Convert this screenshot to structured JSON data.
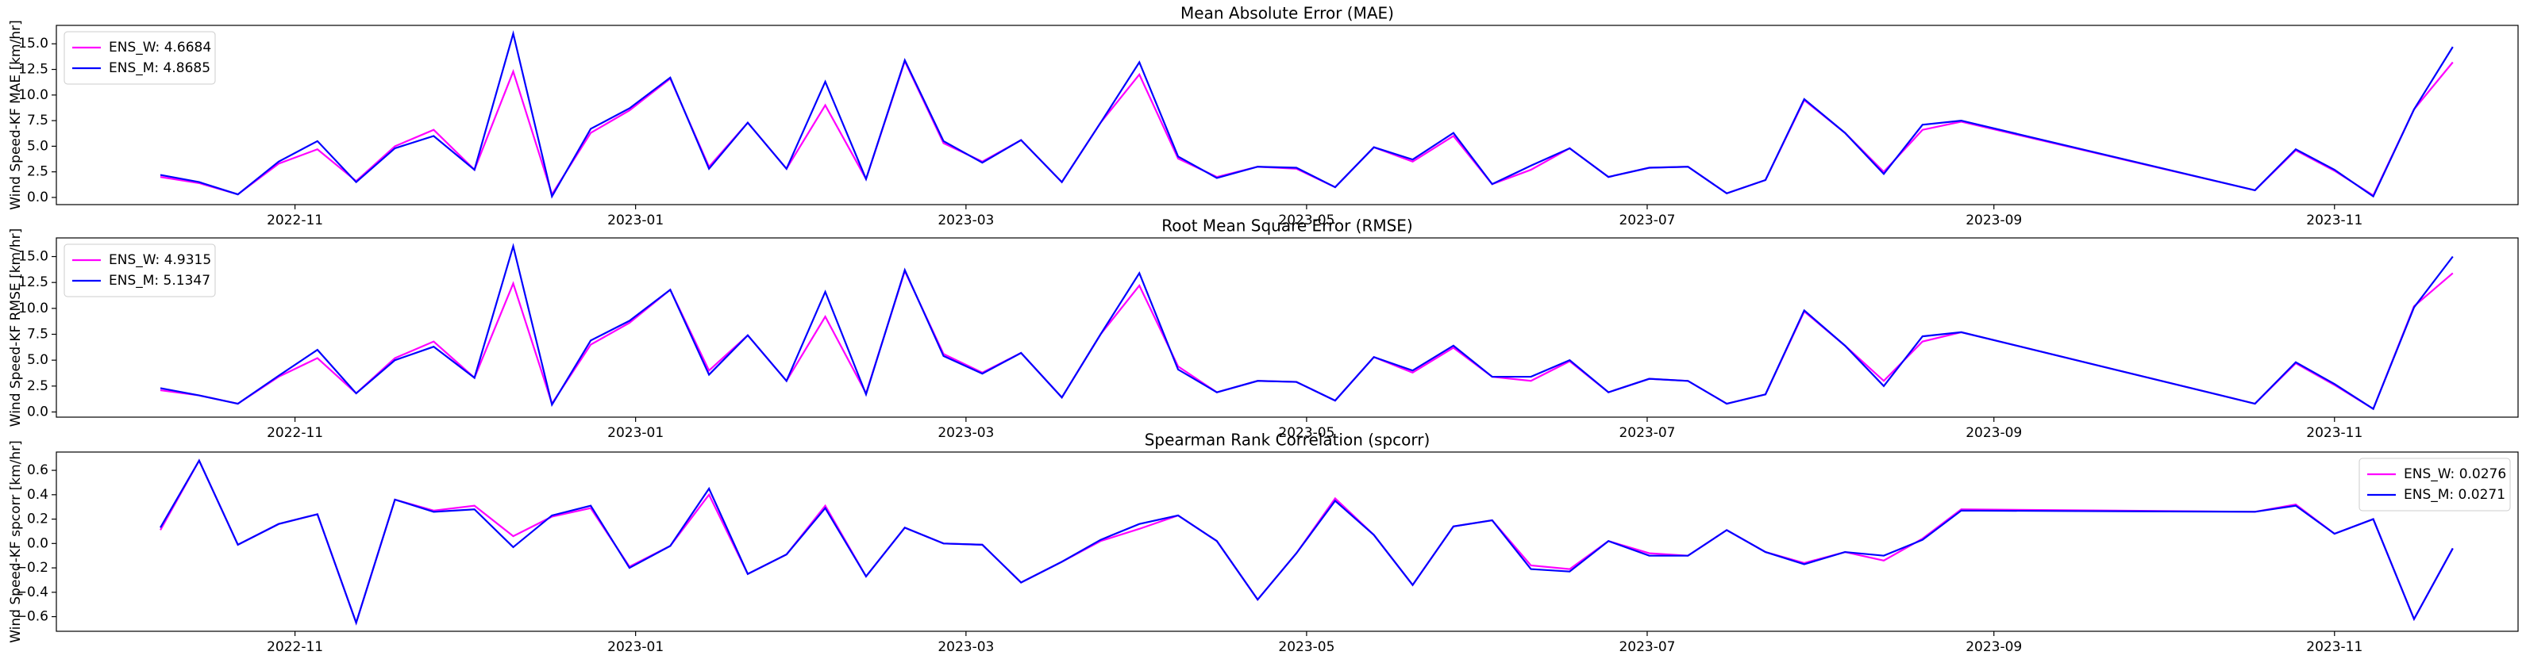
{
  "chart_data": [
    {
      "type": "line",
      "title": "Mean Absolute Error (MAE)",
      "ylabel": "Wind Speed-KF MAE [km/hr]",
      "legend": "upper left",
      "x": [
        2022.767,
        2022.786,
        2022.805,
        2022.825,
        2022.844,
        2022.863,
        2022.882,
        2022.901,
        2022.921,
        2022.94,
        2022.959,
        2022.978,
        2022.997,
        2023.017,
        2023.036,
        2023.055,
        2023.074,
        2023.093,
        2023.113,
        2023.132,
        2023.151,
        2023.17,
        2023.189,
        2023.209,
        2023.228,
        2023.247,
        2023.266,
        2023.285,
        2023.305,
        2023.324,
        2023.343,
        2023.362,
        2023.381,
        2023.401,
        2023.42,
        2023.439,
        2023.458,
        2023.477,
        2023.497,
        2023.516,
        2023.535,
        2023.554,
        2023.573,
        2023.593,
        2023.612,
        2023.631,
        2023.65,
        2023.794,
        2023.814,
        2023.833,
        2023.852,
        2023.872,
        2023.891
      ],
      "xlim": [
        2022.716,
        2023.923
      ],
      "xticks": [
        {
          "value": 2022.833,
          "label": "2022-11"
        },
        {
          "value": 2023.0,
          "label": "2023-01"
        },
        {
          "value": 2023.162,
          "label": "2023-03"
        },
        {
          "value": 2023.329,
          "label": "2023-05"
        },
        {
          "value": 2023.496,
          "label": "2023-07"
        },
        {
          "value": 2023.666,
          "label": "2023-09"
        },
        {
          "value": 2023.833,
          "label": "2023-11"
        }
      ],
      "ylim": [
        -0.7,
        16.8
      ],
      "yticks": [
        {
          "value": 0,
          "label": "0.0"
        },
        2.5,
        {
          "value": 5,
          "label": "5.0"
        },
        7.5,
        {
          "value": 10,
          "label": "10.0"
        },
        12.5,
        {
          "value": 15,
          "label": "15.0"
        }
      ],
      "series": [
        {
          "name": "ENS_W: 4.6684",
          "color": "#ff00ff",
          "values": [
            2.0,
            1.4,
            0.3,
            3.3,
            4.7,
            1.6,
            5.0,
            6.6,
            2.7,
            12.3,
            0.3,
            6.3,
            8.5,
            11.6,
            3.0,
            7.3,
            2.8,
            9.0,
            1.8,
            13.3,
            5.3,
            3.5,
            5.6,
            1.5,
            7.3,
            12.0,
            3.8,
            2.0,
            3.0,
            2.8,
            1.0,
            4.9,
            3.5,
            6.0,
            1.3,
            2.7,
            4.8,
            2.0,
            2.9,
            3.0,
            0.4,
            1.7,
            9.5,
            6.3,
            2.5,
            6.6,
            7.4,
            0.7,
            4.6,
            2.6,
            0.2,
            8.6,
            13.2
          ]
        },
        {
          "name": "ENS_M: 4.8685",
          "color": "#0000ff",
          "values": [
            2.2,
            1.5,
            0.3,
            3.5,
            5.5,
            1.5,
            4.8,
            6.0,
            2.7,
            16.0,
            0.1,
            6.7,
            8.7,
            11.7,
            2.8,
            7.3,
            2.8,
            11.3,
            1.8,
            13.4,
            5.5,
            3.4,
            5.6,
            1.5,
            7.3,
            13.2,
            4.0,
            1.9,
            3.0,
            2.9,
            1.0,
            4.9,
            3.7,
            6.3,
            1.3,
            3.1,
            4.8,
            2.0,
            2.9,
            3.0,
            0.4,
            1.7,
            9.6,
            6.3,
            2.3,
            7.1,
            7.5,
            0.7,
            4.7,
            2.7,
            0.1,
            8.6,
            14.7
          ]
        }
      ]
    },
    {
      "type": "line",
      "title": "Root Mean Square Error (RMSE)",
      "ylabel": "Wind Speed-KF RMSE [km/hr]",
      "legend": "upper left",
      "x": [
        2022.767,
        2022.786,
        2022.805,
        2022.825,
        2022.844,
        2022.863,
        2022.882,
        2022.901,
        2022.921,
        2022.94,
        2022.959,
        2022.978,
        2022.997,
        2023.017,
        2023.036,
        2023.055,
        2023.074,
        2023.093,
        2023.113,
        2023.132,
        2023.151,
        2023.17,
        2023.189,
        2023.209,
        2023.228,
        2023.247,
        2023.266,
        2023.285,
        2023.305,
        2023.324,
        2023.343,
        2023.362,
        2023.381,
        2023.401,
        2023.42,
        2023.439,
        2023.458,
        2023.477,
        2023.497,
        2023.516,
        2023.535,
        2023.554,
        2023.573,
        2023.593,
        2023.612,
        2023.631,
        2023.65,
        2023.794,
        2023.814,
        2023.833,
        2023.852,
        2023.872,
        2023.891
      ],
      "xlim": [
        2022.716,
        2023.923
      ],
      "xticks": [
        {
          "value": 2022.833,
          "label": "2022-11"
        },
        {
          "value": 2023.0,
          "label": "2023-01"
        },
        {
          "value": 2023.162,
          "label": "2023-03"
        },
        {
          "value": 2023.329,
          "label": "2023-05"
        },
        {
          "value": 2023.496,
          "label": "2023-07"
        },
        {
          "value": 2023.666,
          "label": "2023-09"
        },
        {
          "value": 2023.833,
          "label": "2023-11"
        }
      ],
      "ylim": [
        -0.5,
        16.8
      ],
      "yticks": [
        {
          "value": 0,
          "label": "0.0"
        },
        2.5,
        {
          "value": 5,
          "label": "5.0"
        },
        7.5,
        {
          "value": 10,
          "label": "10.0"
        },
        12.5,
        {
          "value": 15,
          "label": "15.0"
        }
      ],
      "series": [
        {
          "name": "ENS_W: 4.9315",
          "color": "#ff00ff",
          "values": [
            2.1,
            1.6,
            0.8,
            3.4,
            5.2,
            1.8,
            5.2,
            6.8,
            3.3,
            12.4,
            0.8,
            6.5,
            8.6,
            11.8,
            4.0,
            7.4,
            3.0,
            9.2,
            1.8,
            13.6,
            5.6,
            3.8,
            5.7,
            1.4,
            7.5,
            12.2,
            4.4,
            1.9,
            3.0,
            2.9,
            1.1,
            5.3,
            3.8,
            6.2,
            3.4,
            3.0,
            4.9,
            1.9,
            3.2,
            3.0,
            0.8,
            1.7,
            9.7,
            6.4,
            3.0,
            6.8,
            7.7,
            0.8,
            4.7,
            2.6,
            0.3,
            10.2,
            13.4
          ]
        },
        {
          "name": "ENS_M: 5.1347",
          "color": "#0000ff",
          "values": [
            2.3,
            1.6,
            0.8,
            3.5,
            6.0,
            1.8,
            5.0,
            6.3,
            3.3,
            16.0,
            0.7,
            6.9,
            8.8,
            11.8,
            3.6,
            7.4,
            3.0,
            11.6,
            1.7,
            13.7,
            5.4,
            3.7,
            5.7,
            1.4,
            7.5,
            13.4,
            4.1,
            1.9,
            3.0,
            2.9,
            1.1,
            5.3,
            4.0,
            6.4,
            3.4,
            3.4,
            5.0,
            1.9,
            3.2,
            3.0,
            0.8,
            1.7,
            9.8,
            6.4,
            2.5,
            7.3,
            7.7,
            0.8,
            4.8,
            2.7,
            0.3,
            10.1,
            15.0
          ]
        }
      ]
    },
    {
      "type": "line",
      "title": "Spearman Rank Correlation (spcorr)",
      "ylabel": "Wind Speed-KF spcorr [km/hr]",
      "legend": "upper right",
      "x": [
        2022.767,
        2022.786,
        2022.805,
        2022.825,
        2022.844,
        2022.863,
        2022.882,
        2022.901,
        2022.921,
        2022.94,
        2022.959,
        2022.978,
        2022.997,
        2023.017,
        2023.036,
        2023.055,
        2023.074,
        2023.093,
        2023.113,
        2023.132,
        2023.151,
        2023.17,
        2023.189,
        2023.209,
        2023.228,
        2023.247,
        2023.266,
        2023.285,
        2023.305,
        2023.324,
        2023.343,
        2023.362,
        2023.381,
        2023.401,
        2023.42,
        2023.439,
        2023.458,
        2023.477,
        2023.497,
        2023.516,
        2023.535,
        2023.554,
        2023.573,
        2023.593,
        2023.612,
        2023.631,
        2023.65,
        2023.794,
        2023.814,
        2023.833,
        2023.852,
        2023.872,
        2023.891
      ],
      "xlim": [
        2022.716,
        2023.923
      ],
      "xticks": [
        {
          "value": 2022.833,
          "label": "2022-11"
        },
        {
          "value": 2023.0,
          "label": "2023-01"
        },
        {
          "value": 2023.162,
          "label": "2023-03"
        },
        {
          "value": 2023.329,
          "label": "2023-05"
        },
        {
          "value": 2023.496,
          "label": "2023-07"
        },
        {
          "value": 2023.666,
          "label": "2023-09"
        },
        {
          "value": 2023.833,
          "label": "2023-11"
        }
      ],
      "ylim": [
        -0.72,
        0.75
      ],
      "yticks": [
        {
          "value": -0.6,
          "label": "−0.6"
        },
        {
          "value": -0.4,
          "label": "−0.4"
        },
        {
          "value": -0.2,
          "label": "−0.2"
        },
        {
          "value": 0,
          "label": "0.0"
        },
        0.2,
        0.4,
        0.6
      ],
      "series": [
        {
          "name": "ENS_W: 0.0276",
          "color": "#ff00ff",
          "values": [
            0.11,
            0.68,
            -0.01,
            0.16,
            0.24,
            -0.65,
            0.36,
            0.27,
            0.31,
            0.06,
            0.22,
            0.29,
            -0.19,
            -0.02,
            0.4,
            -0.25,
            -0.09,
            0.31,
            -0.27,
            0.13,
            0.0,
            -0.01,
            -0.32,
            -0.15,
            0.02,
            0.12,
            0.23,
            0.02,
            -0.46,
            -0.08,
            0.37,
            0.07,
            -0.34,
            0.14,
            0.19,
            -0.18,
            -0.21,
            0.02,
            -0.08,
            -0.1,
            0.11,
            -0.07,
            -0.16,
            -0.07,
            -0.14,
            0.04,
            0.28,
            0.26,
            0.32,
            0.08,
            0.2,
            -0.62,
            -0.04
          ]
        },
        {
          "name": "ENS_M: 0.0271",
          "color": "#0000ff",
          "values": [
            0.13,
            0.68,
            -0.01,
            0.16,
            0.24,
            -0.65,
            0.36,
            0.26,
            0.28,
            -0.03,
            0.23,
            0.31,
            -0.2,
            -0.02,
            0.45,
            -0.25,
            -0.09,
            0.29,
            -0.27,
            0.13,
            0.0,
            -0.01,
            -0.32,
            -0.15,
            0.03,
            0.16,
            0.23,
            0.02,
            -0.46,
            -0.08,
            0.35,
            0.07,
            -0.34,
            0.14,
            0.19,
            -0.21,
            -0.23,
            0.02,
            -0.1,
            -0.1,
            0.11,
            -0.07,
            -0.17,
            -0.07,
            -0.1,
            0.03,
            0.27,
            0.26,
            0.31,
            0.08,
            0.2,
            -0.62,
            -0.04
          ]
        }
      ]
    }
  ]
}
